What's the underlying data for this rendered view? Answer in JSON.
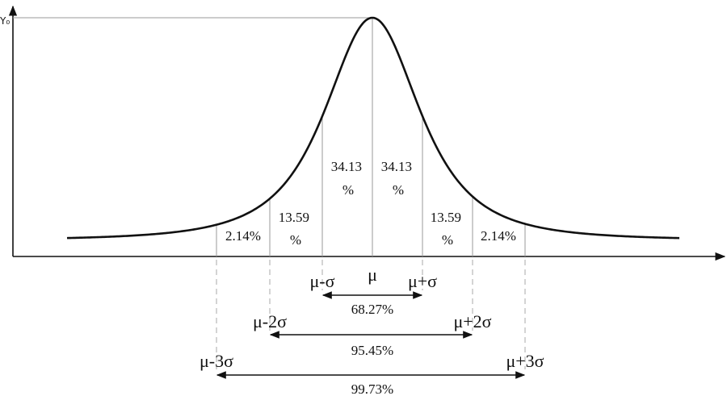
{
  "y_axis_label": "Y₀",
  "center_label": "μ",
  "regions": [
    {
      "lines": [
        "34.13",
        "%"
      ]
    },
    {
      "lines": [
        "34.13",
        "%"
      ]
    },
    {
      "lines": [
        "13.59",
        "%"
      ]
    },
    {
      "lines": [
        "13.59",
        "%"
      ]
    },
    {
      "lines": [
        "2.14%"
      ]
    },
    {
      "lines": [
        "2.14%"
      ]
    }
  ],
  "markers": {
    "m1": "μ-σ",
    "p1": "μ+σ",
    "m2": "μ-2σ",
    "p2": "μ+2σ",
    "m3": "μ-3σ",
    "p3": "μ+3σ"
  },
  "ranges": {
    "one_sigma": "68.27%",
    "two_sigma": "95.45%",
    "three_sigma": "99.73%"
  }
}
